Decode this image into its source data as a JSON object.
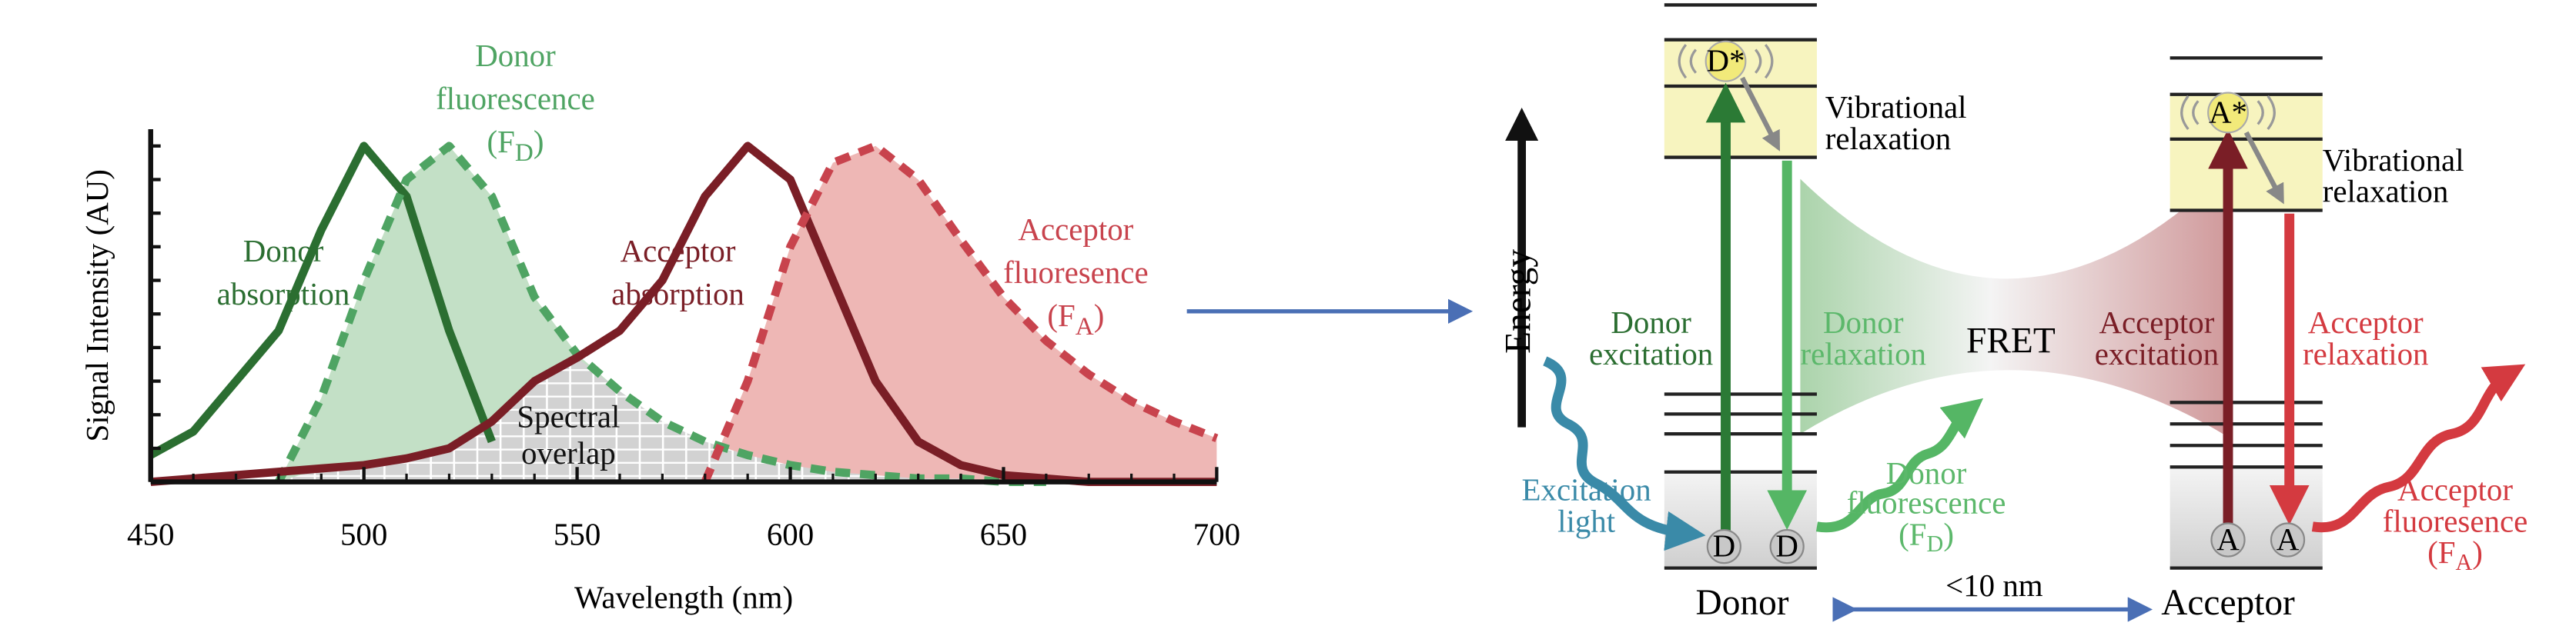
{
  "chart_data": {
    "type": "line",
    "xlabel": "Wavelength (nm)",
    "ylabel": "Signal Intensity (AU)",
    "x": [
      450,
      460,
      470,
      480,
      490,
      500,
      510,
      520,
      530,
      540,
      550,
      560,
      570,
      580,
      590,
      600,
      610,
      620,
      630,
      640,
      650,
      660,
      670,
      680,
      690,
      700
    ],
    "xlim": [
      450,
      700
    ],
    "xticks": [
      450,
      500,
      550,
      600,
      650,
      700
    ],
    "ylim": [
      0,
      1.05
    ],
    "overlap_label": [
      "Spectral",
      "overlap"
    ],
    "series": [
      {
        "label": {
          "lines": [
            "Donor",
            "absorption"
          ]
        },
        "color": "#2b6e31",
        "style": "solid",
        "values": [
          0.08,
          0.15,
          0.3,
          0.45,
          0.75,
          1.0,
          0.85,
          0.45,
          0.12,
          null,
          null,
          null,
          null,
          null,
          null,
          null,
          null,
          null,
          null,
          null,
          null,
          null,
          null,
          null,
          null,
          null
        ]
      },
      {
        "label": {
          "lines": [
            "Donor",
            "fluorescence"
          ],
          "symbol": {
            "open": "(F",
            "sub": "D",
            "close": ")"
          }
        },
        "color": "#4fa463",
        "style": "dashed",
        "fill": "#c3e0c6",
        "values": [
          null,
          null,
          null,
          0,
          0.25,
          0.6,
          0.9,
          1.0,
          0.85,
          0.55,
          0.38,
          0.27,
          0.18,
          0.12,
          0.08,
          0.05,
          0.03,
          0.02,
          0.01,
          0.01,
          0,
          0,
          null,
          null,
          null,
          null
        ]
      },
      {
        "label": {
          "lines": [
            "Acceptor",
            "absorption"
          ]
        },
        "color": "#7a1e26",
        "style": "solid",
        "values": [
          0,
          0.01,
          0.02,
          0.03,
          0.04,
          0.05,
          0.07,
          0.1,
          0.18,
          0.3,
          0.37,
          0.45,
          0.6,
          0.85,
          1.0,
          0.9,
          0.6,
          0.3,
          0.12,
          0.05,
          0.02,
          0.01,
          0,
          0,
          0,
          0
        ]
      },
      {
        "label": {
          "lines": [
            "Acceptor",
            "fluoresence"
          ],
          "symbol": {
            "open": "(F",
            "sub": "A",
            "close": ")"
          }
        },
        "color": "#c8434d",
        "style": "dashed",
        "fill": "#eeb7b5",
        "values": [
          null,
          null,
          null,
          null,
          null,
          null,
          null,
          null,
          null,
          null,
          null,
          null,
          null,
          0,
          0.3,
          0.7,
          0.95,
          1.0,
          0.9,
          0.72,
          0.55,
          0.42,
          0.32,
          0.24,
          0.18,
          0.13
        ]
      }
    ]
  },
  "diagram": {
    "energy": "Energy",
    "donor": {
      "name": "Donor",
      "excited": "D*",
      "ground": [
        "D",
        "D"
      ]
    },
    "acceptor": {
      "name": "Acceptor",
      "excited": "A*",
      "ground": [
        "A",
        "A"
      ]
    },
    "vibrational_relaxation": [
      [
        "Vibrational",
        "relaxation"
      ],
      [
        "Vibrational",
        "relaxation"
      ]
    ],
    "donor_excitation": [
      "Donor",
      "excitation"
    ],
    "donor_relaxation": [
      "Donor",
      "relaxation"
    ],
    "fret": "FRET",
    "acceptor_excitation": [
      "Acceptor",
      "excitation"
    ],
    "acceptor_relaxation": [
      "Acceptor",
      "relaxation"
    ],
    "excitation_light": [
      "Excitation",
      "light"
    ],
    "donor_fluorescence": {
      "lines": [
        "Donor",
        "fluorescence"
      ],
      "symbol": {
        "open": "(F",
        "sub": "D",
        "close": ")"
      }
    },
    "acceptor_fluorescence": {
      "lines": [
        "Acceptor",
        "fluoresence"
      ],
      "symbol": {
        "open": "(F",
        "sub": "A",
        "close": ")"
      }
    },
    "distance": "<10 nm"
  }
}
